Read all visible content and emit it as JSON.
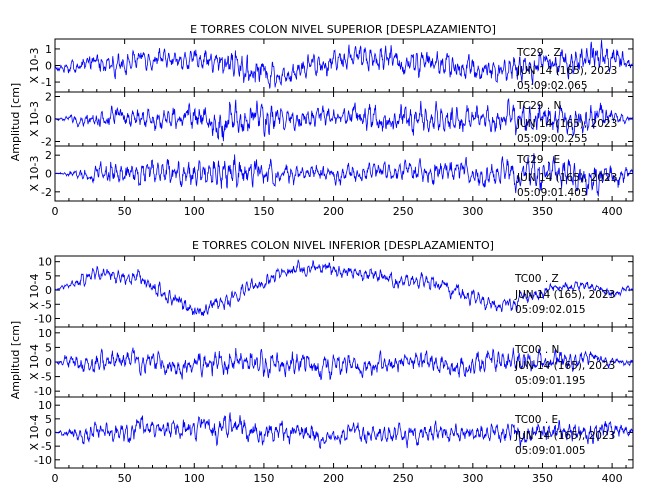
{
  "chart_data": [
    {
      "type": "line",
      "title": "E TORRES COLON NIVEL SUPERIOR [DESPLAZAMIENTO]",
      "ylabel": "Amplitud [cm]",
      "xlim": [
        0,
        415
      ],
      "x_ticks": [
        0,
        50,
        100,
        150,
        200,
        250,
        300,
        350,
        400
      ],
      "line_color": "#0000ff",
      "panels": [
        {
          "component": "TC29 Z",
          "scale_label": "X 10-3",
          "ylim": [
            -1.6,
            1.6
          ],
          "y_ticks": [
            -1,
            0,
            1
          ],
          "annotation": [
            "TC29 . Z",
            "JUN 14 (165), 2023",
            "05:09:02.065"
          ],
          "envelope": [
            [
              0,
              0.2
            ],
            [
              20,
              0.8
            ],
            [
              60,
              0.7
            ],
            [
              110,
              0.8
            ],
            [
              125,
              1.2
            ],
            [
              140,
              1.2
            ],
            [
              165,
              0.9
            ],
            [
              200,
              0.9
            ],
            [
              250,
              1.0
            ],
            [
              300,
              0.9
            ],
            [
              360,
              1.0
            ],
            [
              390,
              1.3
            ],
            [
              405,
              1.0
            ],
            [
              415,
              0.3
            ]
          ],
          "drift": [
            [
              0,
              -0.2
            ],
            [
              40,
              0.2
            ],
            [
              80,
              0.3
            ],
            [
              120,
              0.3
            ],
            [
              160,
              -0.5
            ],
            [
              200,
              0.4
            ],
            [
              240,
              0.4
            ],
            [
              280,
              0.0
            ],
            [
              330,
              -0.3
            ],
            [
              360,
              0.4
            ],
            [
              390,
              0.6
            ],
            [
              415,
              0.0
            ]
          ]
        },
        {
          "component": "TC29 N",
          "scale_label": "X 10-3",
          "ylim": [
            -2.4,
            2.4
          ],
          "y_ticks": [
            -2,
            0,
            2
          ],
          "annotation": [
            "TC29 . N",
            "JUN 14 (165), 2023",
            "05:09:00.255"
          ],
          "envelope": [
            [
              0,
              0.1
            ],
            [
              10,
              0.4
            ],
            [
              30,
              1.0
            ],
            [
              60,
              1.1
            ],
            [
              90,
              1.2
            ],
            [
              120,
              1.9
            ],
            [
              135,
              2.1
            ],
            [
              150,
              1.8
            ],
            [
              170,
              1.4
            ],
            [
              200,
              1.2
            ],
            [
              240,
              1.5
            ],
            [
              280,
              1.4
            ],
            [
              320,
              1.5
            ],
            [
              360,
              1.6
            ],
            [
              390,
              1.6
            ],
            [
              415,
              0.3
            ]
          ],
          "drift": [
            [
              0,
              0.0
            ],
            [
              415,
              0.0
            ]
          ]
        },
        {
          "component": "TC29 E",
          "scale_label": "X 10-3",
          "ylim": [
            -3.0,
            3.0
          ],
          "y_ticks": [
            -2,
            0,
            2
          ],
          "annotation": [
            "TC29 . E",
            "JUN 14 (165), 2023",
            "05:09:01.405"
          ],
          "envelope": [
            [
              0,
              0.1
            ],
            [
              10,
              0.4
            ],
            [
              40,
              1.7
            ],
            [
              70,
              1.5
            ],
            [
              100,
              1.9
            ],
            [
              130,
              2.3
            ],
            [
              150,
              2.0
            ],
            [
              180,
              1.0
            ],
            [
              220,
              1.2
            ],
            [
              260,
              1.5
            ],
            [
              300,
              1.6
            ],
            [
              330,
              2.0
            ],
            [
              360,
              1.9
            ],
            [
              400,
              2.0
            ],
            [
              415,
              0.5
            ]
          ],
          "drift": [
            [
              0,
              0.0
            ],
            [
              415,
              0.0
            ]
          ]
        }
      ]
    },
    {
      "type": "line",
      "title": "E TORRES COLON NIVEL INFERIOR [DESPLAZAMIENTO]",
      "ylabel": "Amplitud [cm]",
      "xlim": [
        0,
        415
      ],
      "x_ticks": [
        0,
        50,
        100,
        150,
        200,
        250,
        300,
        350,
        400
      ],
      "line_color": "#0000ff",
      "panels": [
        {
          "component": "TC00 Z",
          "scale_label": "X 10-4",
          "ylim": [
            -13,
            12
          ],
          "y_ticks": [
            -10,
            -5,
            0,
            5,
            10
          ],
          "annotation": [
            "TC00 . Z",
            "JUN 14 (165), 2023",
            "05:09:02.015"
          ],
          "envelope": [
            [
              0,
              0.5
            ],
            [
              20,
              3.0
            ],
            [
              100,
              3.5
            ],
            [
              200,
              3.0
            ],
            [
              300,
              3.5
            ],
            [
              415,
              1.5
            ]
          ],
          "drift": [
            [
              0,
              0
            ],
            [
              15,
              2
            ],
            [
              30,
              6
            ],
            [
              60,
              4
            ],
            [
              80,
              -2
            ],
            [
              100,
              -7
            ],
            [
              120,
              -5
            ],
            [
              135,
              0
            ],
            [
              150,
              3
            ],
            [
              165,
              6
            ],
            [
              180,
              8
            ],
            [
              200,
              7
            ],
            [
              220,
              6
            ],
            [
              240,
              4
            ],
            [
              260,
              3
            ],
            [
              280,
              2
            ],
            [
              300,
              -3
            ],
            [
              320,
              -6
            ],
            [
              340,
              -2
            ],
            [
              360,
              1
            ],
            [
              380,
              2
            ],
            [
              400,
              -1
            ],
            [
              415,
              1
            ]
          ]
        },
        {
          "component": "TC00 N",
          "scale_label": "X 10-4",
          "ylim": [
            -12,
            12
          ],
          "y_ticks": [
            -10,
            -5,
            0,
            5,
            10
          ],
          "annotation": [
            "TC00 . N",
            "JUN 14 (165), 2023",
            "05:09:01.195"
          ],
          "envelope": [
            [
              0,
              0.3
            ],
            [
              15,
              4.0
            ],
            [
              100,
              4.5
            ],
            [
              140,
              6.0
            ],
            [
              160,
              5.0
            ],
            [
              250,
              4.0
            ],
            [
              350,
              5.0
            ],
            [
              415,
              1.0
            ]
          ],
          "drift": [
            [
              0,
              0
            ],
            [
              40,
              1
            ],
            [
              90,
              -1
            ],
            [
              140,
              0
            ],
            [
              200,
              -1
            ],
            [
              260,
              0
            ],
            [
              320,
              -1
            ],
            [
              380,
              1
            ],
            [
              415,
              0
            ]
          ]
        },
        {
          "component": "TC00 E",
          "scale_label": "X 10-4",
          "ylim": [
            -13,
            13
          ],
          "y_ticks": [
            -10,
            -5,
            0,
            5,
            10
          ],
          "annotation": [
            "TC00 . E",
            "JUN 14 (165), 2023",
            "05:09:01.005"
          ],
          "envelope": [
            [
              0,
              0.3
            ],
            [
              15,
              4.0
            ],
            [
              100,
              5.0
            ],
            [
              130,
              6.0
            ],
            [
              200,
              4.0
            ],
            [
              300,
              4.0
            ],
            [
              350,
              5.0
            ],
            [
              400,
              5.0
            ],
            [
              415,
              1.5
            ]
          ],
          "drift": [
            [
              0,
              0
            ],
            [
              40,
              1
            ],
            [
              100,
              2
            ],
            [
              160,
              0
            ],
            [
              220,
              -1
            ],
            [
              280,
              0
            ],
            [
              340,
              -1
            ],
            [
              400,
              2
            ],
            [
              415,
              0
            ]
          ]
        }
      ]
    }
  ]
}
